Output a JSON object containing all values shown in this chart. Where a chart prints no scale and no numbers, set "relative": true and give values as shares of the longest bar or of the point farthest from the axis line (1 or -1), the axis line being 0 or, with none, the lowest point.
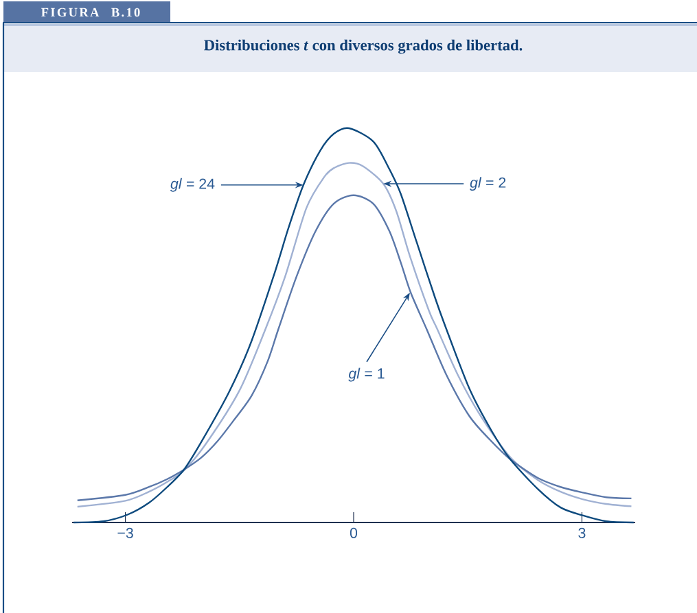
{
  "chart_data": {
    "type": "line",
    "title": "Distribuciones *t* con diversos grados de libertad.",
    "annotations": [
      "FIGURA B.10",
      {
        "text": "*gl* = 24",
        "x": -0.66,
        "y": 0.856
      },
      {
        "text": "*gl* = 2",
        "x": 0.39,
        "y": 0.859
      },
      {
        "text": "*gl* = 1",
        "x": 0.74,
        "y": 0.583
      }
    ],
    "relative": true,
    "xlim": [
      -3.7,
      3.7
    ],
    "xticks": [
      {
        "value": -3,
        "label": "−3"
      },
      0,
      3
    ],
    "line_style": "solid",
    "series": [
      {
        "color": "#a0b1d3",
        "x": [
          -3.63,
          -3.0,
          -2.69,
          -2.45,
          -2.23,
          -1.94,
          -1.5,
          -1.16,
          -0.9,
          -0.62,
          -0.38,
          -0.25,
          -0.06,
          0.12,
          0.39,
          0.56,
          0.74,
          0.99,
          1.1,
          1.37,
          1.67,
          2.06,
          2.42,
          2.72,
          3.01,
          3.32,
          3.65
        ],
        "values": [
          0.04,
          0.055,
          0.078,
          0.103,
          0.132,
          0.2,
          0.335,
          0.49,
          0.624,
          0.798,
          0.878,
          0.9,
          0.912,
          0.904,
          0.859,
          0.79,
          0.675,
          0.537,
          0.49,
          0.374,
          0.27,
          0.165,
          0.108,
          0.078,
          0.059,
          0.047,
          0.041
        ]
      },
      {
        "color": "#5b78aa",
        "x": [
          -3.63,
          -3.0,
          -2.69,
          -2.45,
          -2.23,
          -2.0,
          -1.79,
          -1.58,
          -1.34,
          -1.13,
          -0.99,
          -0.75,
          -0.5,
          -0.26,
          0,
          0.26,
          0.47,
          0.62,
          0.75,
          0.96,
          1.22,
          1.52,
          1.79,
          2.06,
          2.42,
          2.72,
          3.01,
          3.32,
          3.65
        ],
        "values": [
          0.056,
          0.07,
          0.09,
          0.11,
          0.134,
          0.165,
          0.206,
          0.258,
          0.322,
          0.409,
          0.49,
          0.624,
          0.739,
          0.809,
          0.83,
          0.808,
          0.739,
          0.659,
          0.583,
          0.49,
          0.374,
          0.27,
          0.21,
          0.16,
          0.113,
          0.09,
          0.076,
          0.064,
          0.061
        ]
      },
      {
        "color": "#0d4a7e",
        "x": [
          -3.68,
          -3.29,
          -2.97,
          -2.69,
          -2.45,
          -2.23,
          -2.0,
          -1.64,
          -1.35,
          -1.04,
          -0.86,
          -0.66,
          -0.44,
          -0.26,
          -0.06,
          0.26,
          0.47,
          0.62,
          0.83,
          1.07,
          1.2,
          1.52,
          1.82,
          2.06,
          2.42,
          2.72,
          3.01,
          3.32,
          3.68
        ],
        "values": [
          0,
          0.003,
          0.02,
          0.05,
          0.09,
          0.134,
          0.205,
          0.33,
          0.456,
          0.632,
          0.745,
          0.856,
          0.943,
          0.986,
          1,
          0.966,
          0.896,
          0.833,
          0.71,
          0.57,
          0.5,
          0.34,
          0.23,
          0.16,
          0.085,
          0.038,
          0.018,
          0.003,
          0
        ]
      }
    ]
  }
}
